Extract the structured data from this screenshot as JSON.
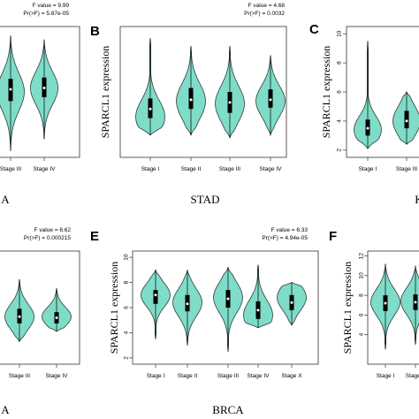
{
  "colors": {
    "violin_fill": "#7fdcc8",
    "violin_stroke": "#2c3e3a",
    "box": "#000000",
    "axis": "#333333"
  },
  "chart_data": [
    {
      "type": "violin",
      "panel_letter": "",
      "cancer_label": "A",
      "ylabel": "",
      "ylim": [
        1,
        11
      ],
      "yticks": [],
      "annotation": {
        "line1": "F value = 9.99",
        "line2": "Pr(>F) = 5.87e-05"
      },
      "categories": [
        "Stage III",
        "Stage IV"
      ],
      "series": [
        {
          "category": "Stage III",
          "min": 1.5,
          "q1": 5.3,
          "median": 6.2,
          "q3": 7.0,
          "max": 10.3,
          "mode": 6.0
        },
        {
          "category": "Stage IV",
          "min": 2.4,
          "q1": 5.6,
          "median": 6.3,
          "q3": 7.1,
          "max": 10.0,
          "mode": 6.3
        }
      ]
    },
    {
      "type": "violin",
      "panel_letter": "B",
      "cancer_label": "STAD",
      "ylabel": "SPARCL1 expression",
      "ylim": [
        1.5,
        11.5
      ],
      "yticks": [],
      "annotation": {
        "line1": "F value = 4.68",
        "line2": "Pr(>F) = 0.0032"
      },
      "categories": [
        "Stage I",
        "Stage II",
        "Stage III",
        "Stage IV"
      ],
      "series": [
        {
          "category": "Stage I",
          "min": 3.2,
          "q1": 4.5,
          "median": 5.2,
          "q3": 6.0,
          "max": 10.6,
          "mode": 4.6
        },
        {
          "category": "Stage II",
          "min": 3.2,
          "q1": 5.2,
          "median": 5.9,
          "q3": 6.8,
          "max": 10.0,
          "mode": 5.8
        },
        {
          "category": "Stage III",
          "min": 3.0,
          "q1": 4.9,
          "median": 5.7,
          "q3": 6.5,
          "max": 10.0,
          "mode": 5.6
        },
        {
          "category": "Stage IV",
          "min": 3.2,
          "q1": 5.3,
          "median": 5.9,
          "q3": 6.7,
          "max": 9.3,
          "mode": 5.8
        }
      ]
    },
    {
      "type": "violin",
      "panel_letter": "C",
      "cancer_label": "K",
      "ylabel": "SPARCL1 expression",
      "ylim": [
        1.5,
        10.5
      ],
      "yticks": [
        2,
        4,
        6,
        8,
        10
      ],
      "annotation": {
        "line1": "",
        "line2": ""
      },
      "categories": [
        "Stage I",
        "Stage III"
      ],
      "series": [
        {
          "category": "Stage I",
          "min": 2.1,
          "q1": 3.0,
          "median": 3.5,
          "q3": 4.1,
          "max": 9.5,
          "mode": 3.4
        },
        {
          "category": "Stage III",
          "min": 2.4,
          "q1": 3.5,
          "median": 4.0,
          "q3": 4.7,
          "max": 6.0,
          "mode": 4.0
        }
      ]
    },
    {
      "type": "violin",
      "panel_letter": "",
      "cancer_label": "A",
      "ylabel": "",
      "ylim": [
        1,
        11
      ],
      "yticks": [],
      "annotation": {
        "line1": "F value = 6.62",
        "line2": "Pr(>F) = 0.000215"
      },
      "categories": [
        "Stage III",
        "Stage IV"
      ],
      "series": [
        {
          "category": "Stage III",
          "min": 3.0,
          "q1": 4.6,
          "median": 5.2,
          "q3": 5.9,
          "max": 8.5,
          "mode": 5.2
        },
        {
          "category": "Stage IV",
          "min": 3.9,
          "q1": 4.6,
          "median": 5.1,
          "q3": 5.6,
          "max": 7.7,
          "mode": 5.2
        }
      ]
    },
    {
      "type": "violin",
      "panel_letter": "E",
      "cancer_label": "BRCA",
      "ylabel": "SPARCL1 expression",
      "ylim": [
        1.5,
        10.5
      ],
      "yticks": [
        2,
        4,
        6,
        8,
        10
      ],
      "annotation": {
        "line1": "F value = 6.33",
        "line2": "Pr(>F) = 4.94e-05"
      },
      "categories": [
        "Stage I",
        "Stage II",
        "Stage III",
        "Stage IV",
        "Stage X"
      ],
      "series": [
        {
          "category": "Stage I",
          "min": 3.5,
          "q1": 6.3,
          "median": 7.0,
          "q3": 7.4,
          "max": 9.0,
          "mode": 7.0
        },
        {
          "category": "Stage II",
          "min": 3.0,
          "q1": 5.7,
          "median": 6.3,
          "q3": 7.0,
          "max": 9.0,
          "mode": 6.4
        },
        {
          "category": "Stage III",
          "min": 2.5,
          "q1": 6.0,
          "median": 6.7,
          "q3": 7.4,
          "max": 9.2,
          "mode": 6.8
        },
        {
          "category": "Stage IV",
          "min": 4.4,
          "q1": 5.1,
          "median": 5.8,
          "q3": 6.5,
          "max": 9.4,
          "mode": 5.4
        },
        {
          "category": "Stage X",
          "min": 4.6,
          "q1": 5.8,
          "median": 6.4,
          "q3": 7.0,
          "max": 8.0,
          "mode": 6.8
        }
      ]
    },
    {
      "type": "violin",
      "panel_letter": "F",
      "cancer_label": "",
      "ylabel": "SPARCL1 expression",
      "ylim": [
        1,
        12.5
      ],
      "yticks": [
        4,
        6,
        8,
        10,
        12
      ],
      "annotation": {
        "line1": "",
        "line2": ""
      },
      "categories": [
        "Stage I",
        "Stage II"
      ],
      "series": [
        {
          "category": "Stage I",
          "min": 2.5,
          "q1": 6.4,
          "median": 7.2,
          "q3": 8.0,
          "max": 11.2,
          "mode": 7.3
        },
        {
          "category": "Stage II",
          "min": 3.0,
          "q1": 6.5,
          "median": 7.3,
          "q3": 8.1,
          "max": 11.0,
          "mode": 7.4
        }
      ]
    }
  ]
}
